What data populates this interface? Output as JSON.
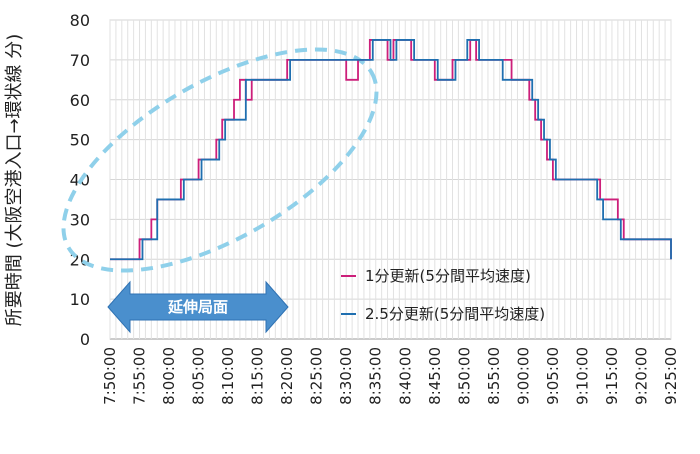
{
  "chart_data": {
    "type": "line",
    "ylabel": "所要時間 (大阪空港入口→環状線 分)",
    "ylim": [
      0,
      80
    ],
    "yticks": [
      0,
      10,
      20,
      30,
      40,
      50,
      60,
      70,
      80
    ],
    "grid": true,
    "legend_position": "center-right",
    "x_ticks": [
      "7:50:00",
      "7:55:00",
      "8:00:00",
      "8:05:00",
      "8:10:00",
      "8:15:00",
      "8:20:00",
      "8:25:00",
      "8:30:00",
      "8:35:00",
      "8:40:00",
      "8:45:00",
      "8:50:00",
      "8:55:00",
      "9:00:00",
      "9:05:00",
      "9:10:00",
      "9:15:00",
      "9:20:00",
      "9:25:00"
    ],
    "series": [
      {
        "name": "1分更新(5分間平均速度)",
        "color": "#cc1f7a",
        "x": [
          "7:50:00",
          "7:53:00",
          "7:55:00",
          "7:56:00",
          "7:57:00",
          "7:58:00",
          "8:01:00",
          "8:02:00",
          "8:03:00",
          "8:05:00",
          "8:08:00",
          "8:09:00",
          "8:10:00",
          "8:11:00",
          "8:12:00",
          "8:13:00",
          "8:14:00",
          "8:19:00",
          "8:20:00",
          "8:30:00",
          "8:32:00",
          "8:34:00",
          "8:35:00",
          "8:37:00",
          "8:38:00",
          "8:40:00",
          "8:41:00",
          "8:45:00",
          "8:46:00",
          "8:48:00",
          "8:49:00",
          "8:50:00",
          "8:51:00",
          "8:52:00",
          "8:55:00",
          "8:56:00",
          "8:58:00",
          "9:01:00",
          "9:02:00",
          "9:03:00",
          "9:04:00",
          "9:05:00",
          "9:06:00",
          "9:07:00",
          "9:10:00",
          "9:12:00",
          "9:13:00",
          "9:16:00",
          "9:17:00",
          "9:25:00"
        ],
        "y": [
          20,
          20,
          25,
          25,
          30,
          35,
          35,
          40,
          40,
          45,
          50,
          55,
          55,
          60,
          65,
          60,
          65,
          65,
          70,
          65,
          70,
          75,
          75,
          70,
          75,
          75,
          70,
          65,
          65,
          70,
          70,
          70,
          75,
          70,
          70,
          70,
          65,
          60,
          55,
          50,
          45,
          40,
          40,
          40,
          40,
          40,
          35,
          30,
          25,
          20
        ]
      },
      {
        "name": "2.5分更新(5分間平均速度)",
        "color": "#1f6fb0",
        "x": [
          "7:50:00",
          "7:54:30",
          "7:55:30",
          "7:57:00",
          "7:58:00",
          "8:01:30",
          "8:02:30",
          "8:04:00",
          "8:05:30",
          "8:08:30",
          "8:09:30",
          "8:12:00",
          "8:13:00",
          "8:19:00",
          "8:20:30",
          "8:30:30",
          "8:32:30",
          "8:34:30",
          "8:35:30",
          "8:37:30",
          "8:38:30",
          "8:40:30",
          "8:41:30",
          "8:45:30",
          "8:46:30",
          "8:48:30",
          "8:49:30",
          "8:50:30",
          "8:51:30",
          "8:52:30",
          "8:55:30",
          "8:56:30",
          "8:58:30",
          "9:01:30",
          "9:02:30",
          "9:03:30",
          "9:04:30",
          "9:05:30",
          "9:06:30",
          "9:07:30",
          "9:10:30",
          "9:12:30",
          "9:13:30",
          "9:16:30",
          "9:17:30",
          "9:25:00"
        ],
        "y": [
          20,
          20,
          25,
          25,
          35,
          35,
          40,
          40,
          45,
          50,
          55,
          55,
          65,
          65,
          70,
          70,
          70,
          75,
          75,
          70,
          75,
          75,
          70,
          65,
          65,
          70,
          70,
          75,
          75,
          70,
          70,
          65,
          65,
          60,
          55,
          50,
          45,
          40,
          40,
          40,
          40,
          35,
          30,
          25,
          25,
          20
        ]
      }
    ],
    "annotations": {
      "arrow_label": "延伸局面"
    }
  }
}
